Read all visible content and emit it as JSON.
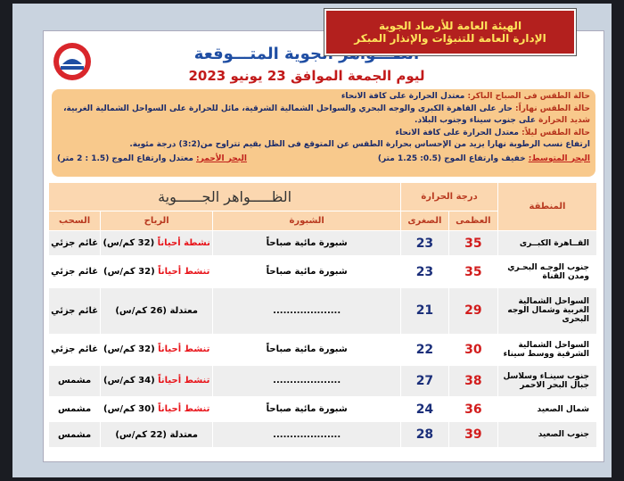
{
  "header": {
    "org": [
      "الهيئة العامة للأرصاد الجوية",
      "الإدارة العامة للتنبؤات والإنذار المبكر"
    ],
    "title": "الظـــواهر الجوية المتـــوقعة",
    "date": "ليوم الجمعة الموافق 23 يونيو 2023"
  },
  "summary": {
    "lines": [
      {
        "label": "حالة الطقس فى الصباح الباكر:",
        "text": "معتدل الحرارة على كافة الانحاء"
      },
      {
        "label": "حالة الطقس نهاراً:",
        "text": "حار على القاهرة الكبرى والوجه البحري والسواحل الشمالية الشرقية، مائل للحرارة على السواحل الشمالية الغربية،"
      },
      {
        "label": "شديد الحرارة",
        "text": "على جنوب سيناء وجنوب البلاد."
      },
      {
        "label": "حالة الطقس ليلاً:",
        "text": "معتدل الحرارة على كافة الانحاء"
      },
      {
        "label": "",
        "text": "ارتفاع نسب الرطوبة نهارا يزيد من الإحساس بحرارة الطقس عن المتوقع فى الظل بقيم تتراوح من(3:2) درجة مئوية."
      }
    ],
    "sea": [
      {
        "label": "البحر المتوسط:",
        "text": "خفيف وارتفاع الموج (0.5: 1.25 متر)"
      },
      {
        "label": "البحر الأحمر:",
        "text": "معتدل وارتفاع الموج (1.5 : 2 متر)"
      }
    ]
  },
  "table": {
    "headers": {
      "region": "المنطقة",
      "temp": "درجة الحرارة",
      "max": "العظمى",
      "min": "الصغرى",
      "phenomena": "الظـــــواهر الجــــــوية",
      "fog": "الشبورة",
      "wind": "الرياح",
      "clouds": "السحب"
    },
    "wind_colors": {
      "strong": "#e8141a",
      "normal": "#000000"
    },
    "rows": [
      {
        "region": "القــاهرة الكبــرى",
        "max": 35,
        "min": 23,
        "fog": "شبورة مائية صباحاً",
        "wind_desc": "نشطة أحياناً",
        "wind_speed": "(32 كم/س)",
        "wind_kind": "strong",
        "clouds": "غائم جزئي"
      },
      {
        "region": "جنوب الوجـه البحـري ومدن القناة",
        "max": 35,
        "min": 23,
        "fog": "شبورة مائية صباحاً",
        "wind_desc": "تنشط أحياناً",
        "wind_speed": "(32 كم/س)",
        "wind_kind": "strong",
        "clouds": "غائم جزئي"
      },
      {
        "region": "السواحل الشمالية الغربية وشمال الوجه البحرى",
        "max": 29,
        "min": 21,
        "fog": "....................",
        "wind_desc": "معتدلة",
        "wind_speed": "(26 كم/س)",
        "wind_kind": "normal",
        "clouds": "غائم جزئي"
      },
      {
        "region": "السواحل الشمالية الشرقية ووسط سيناء",
        "max": 30,
        "min": 22,
        "fog": "شبورة مائية صباحاً",
        "wind_desc": "تنشط أحياناً",
        "wind_speed": "(32 كم/س)",
        "wind_kind": "strong",
        "clouds": "غائم جزئي"
      },
      {
        "region": "جنوب سينـاء وسلاسل جبال البحر الاحمر",
        "max": 38,
        "min": 27,
        "fog": "....................",
        "wind_desc": "تنشط أحياناً",
        "wind_speed": "(34 كم/س)",
        "wind_kind": "strong",
        "clouds": "مشمس"
      },
      {
        "region": "شمال الصعيد",
        "max": 36,
        "min": 24,
        "fog": "شبورة مائية صباحاً",
        "wind_desc": "تنشط أحياناً",
        "wind_speed": "(30 كم/س)",
        "wind_kind": "strong",
        "clouds": "مشمس"
      },
      {
        "region": "جنوب الصعيد",
        "max": 39,
        "min": 28,
        "fog": "....................",
        "wind_desc": "معتدلة",
        "wind_speed": "(22 كم/س)",
        "wind_kind": "normal",
        "clouds": "مشمس"
      }
    ]
  }
}
